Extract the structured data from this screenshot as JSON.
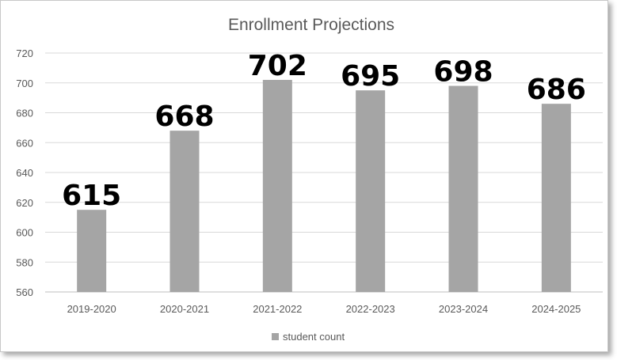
{
  "chart_data": {
    "type": "bar",
    "title": "Enrollment Projections",
    "categories": [
      "2019-2020",
      "2020-2021",
      "2021-2022",
      "2022-2023",
      "2023-2024",
      "2024-2025"
    ],
    "series": [
      {
        "name": "student count",
        "values": [
          615,
          668,
          702,
          695,
          698,
          686
        ]
      }
    ],
    "ylim": [
      560,
      720
    ],
    "yticks": [
      560,
      580,
      600,
      620,
      640,
      660,
      680,
      700,
      720
    ],
    "grid": true,
    "data_labels": true,
    "legend": "bottom",
    "bar_color": "#a5a5a5",
    "grid_color": "#d9d9d9"
  }
}
